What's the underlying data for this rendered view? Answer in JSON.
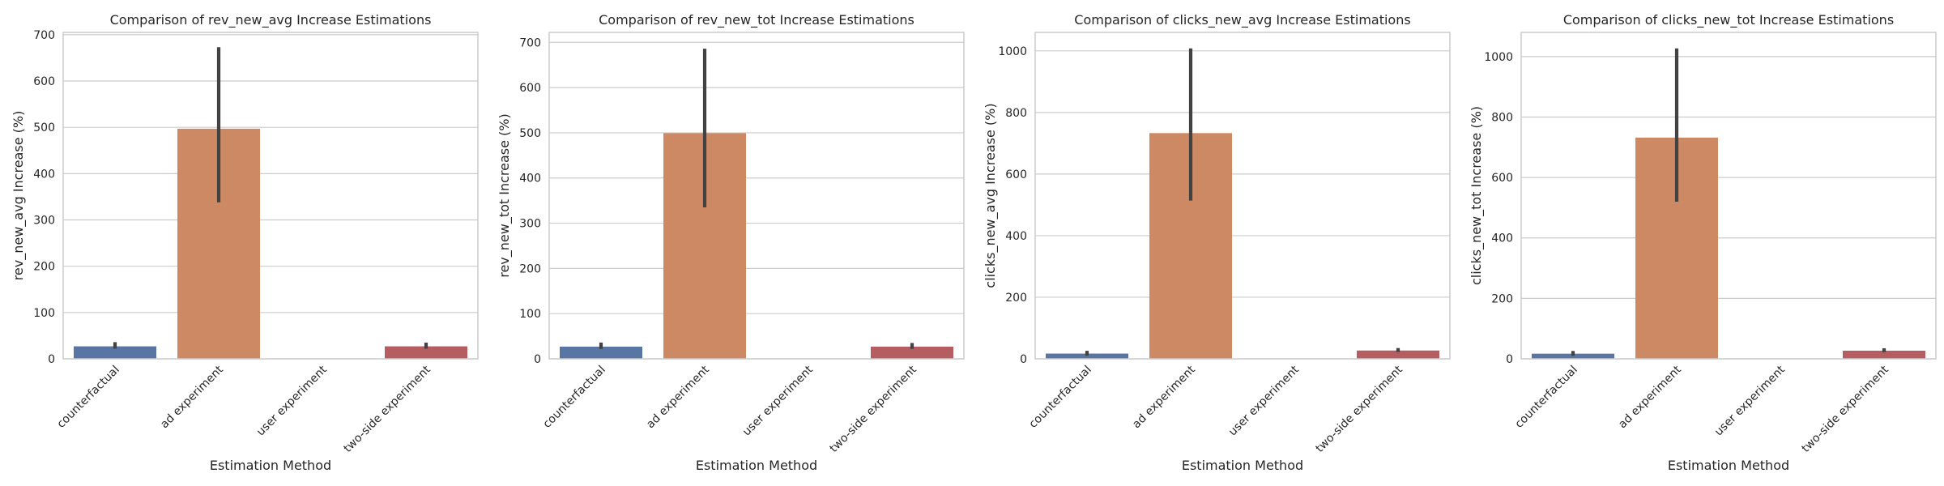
{
  "colors": {
    "counterfactual": "#5875a4",
    "ad experiment": "#cc8963",
    "user experiment": "#5f9e6e",
    "two-side experiment": "#b55d60",
    "error_bar": "#424242"
  },
  "chart_data": [
    {
      "type": "bar",
      "title": "Comparison of rev_new_avg Increase Estimations",
      "xlabel": "Estimation Method",
      "ylabel": "rev_new_avg Increase (%)",
      "categories": [
        "counterfactual",
        "ad experiment",
        "user experiment",
        "two-side experiment"
      ],
      "values": [
        27,
        497,
        0,
        27
      ],
      "error_low": [
        22,
        338,
        0,
        22
      ],
      "error_high": [
        36,
        673,
        0,
        35
      ],
      "ylim": [
        0,
        705
      ],
      "yticks": [
        0,
        100,
        200,
        300,
        400,
        500,
        600,
        700
      ],
      "grid": true
    },
    {
      "type": "bar",
      "title": "Comparison of rev_new_tot Increase Estimations",
      "xlabel": "Estimation Method",
      "ylabel": "rev_new_tot Increase (%)",
      "categories": [
        "counterfactual",
        "ad experiment",
        "user experiment",
        "two-side experiment"
      ],
      "values": [
        27,
        499,
        0,
        27
      ],
      "error_low": [
        22,
        335,
        0,
        22
      ],
      "error_high": [
        36,
        686,
        0,
        35
      ],
      "ylim": [
        0,
        722
      ],
      "yticks": [
        0,
        100,
        200,
        300,
        400,
        500,
        600,
        700
      ],
      "grid": true
    },
    {
      "type": "bar",
      "title": "Comparison of clicks_new_avg Increase Estimations",
      "xlabel": "Estimation Method",
      "ylabel": "clicks_new_avg Increase (%)",
      "categories": [
        "counterfactual",
        "ad experiment",
        "user experiment",
        "two-side experiment"
      ],
      "values": [
        17,
        733,
        0,
        27
      ],
      "error_low": [
        10,
        514,
        0,
        22
      ],
      "error_high": [
        26,
        1008,
        0,
        35
      ],
      "ylim": [
        0,
        1060
      ],
      "yticks": [
        0,
        200,
        400,
        600,
        800,
        1000
      ],
      "grid": true
    },
    {
      "type": "bar",
      "title": "Comparison of clicks_new_tot Increase Estimations",
      "xlabel": "Estimation Method",
      "ylabel": "clicks_new_tot Increase (%)",
      "categories": [
        "counterfactual",
        "ad experiment",
        "user experiment",
        "two-side experiment"
      ],
      "values": [
        17,
        732,
        0,
        27
      ],
      "error_low": [
        10,
        520,
        0,
        22
      ],
      "error_high": [
        26,
        1027,
        0,
        35
      ],
      "ylim": [
        0,
        1080
      ],
      "yticks": [
        0,
        200,
        400,
        600,
        800,
        1000
      ],
      "grid": true
    }
  ]
}
